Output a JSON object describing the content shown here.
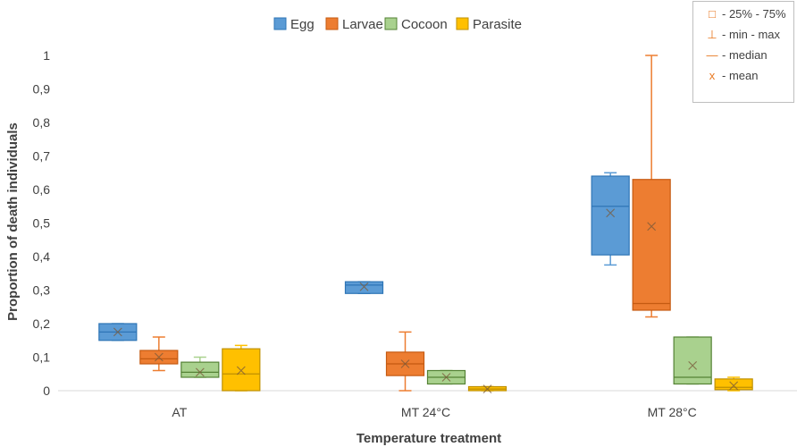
{
  "chart_data": {
    "type": "box",
    "title": "",
    "xlabel": "Temperature treatment",
    "ylabel": "Proportion of death individuals",
    "ylim": [
      0,
      1
    ],
    "yticks": [
      "0",
      "0,1",
      "0,2",
      "0,3",
      "0,4",
      "0,5",
      "0,6",
      "0,7",
      "0,8",
      "0,9",
      "1"
    ],
    "categories": [
      "AT",
      "MT 24°C",
      "MT 28°C"
    ],
    "legend_position": "top-center",
    "grid": false,
    "series": [
      {
        "name": "Egg",
        "color": "#5b9bd5",
        "stroke": "#2e75b6",
        "boxes": [
          {
            "min": 0.15,
            "q1": 0.15,
            "median": 0.175,
            "q3": 0.2,
            "max": 0.2,
            "mean": 0.175
          },
          {
            "min": 0.29,
            "q1": 0.29,
            "median": 0.315,
            "q3": 0.325,
            "max": 0.325,
            "mean": 0.31
          },
          {
            "min": 0.375,
            "q1": 0.405,
            "median": 0.55,
            "q3": 0.64,
            "max": 0.65,
            "mean": 0.53
          }
        ]
      },
      {
        "name": "Larvae",
        "color": "#ed7d31",
        "stroke": "#c55a11",
        "boxes": [
          {
            "min": 0.06,
            "q1": 0.08,
            "median": 0.095,
            "q3": 0.12,
            "max": 0.16,
            "mean": 0.1
          },
          {
            "min": 0.0,
            "q1": 0.045,
            "median": 0.08,
            "q3": 0.115,
            "max": 0.175,
            "mean": 0.08
          },
          {
            "min": 0.22,
            "q1": 0.24,
            "median": 0.26,
            "q3": 0.63,
            "max": 1.0,
            "mean": 0.49
          }
        ]
      },
      {
        "name": "Cocoon",
        "color": "#a9d18e",
        "stroke": "#548235",
        "boxes": [
          {
            "min": 0.04,
            "q1": 0.04,
            "median": 0.055,
            "q3": 0.085,
            "max": 0.1,
            "mean": 0.055
          },
          {
            "min": 0.02,
            "q1": 0.02,
            "median": 0.04,
            "q3": 0.06,
            "max": 0.06,
            "mean": 0.04
          },
          {
            "min": 0.02,
            "q1": 0.02,
            "median": 0.04,
            "q3": 0.16,
            "max": 0.16,
            "mean": 0.075
          }
        ]
      },
      {
        "name": "Parasite",
        "color": "#ffc000",
        "stroke": "#bf9000",
        "boxes": [
          {
            "min": 0.0,
            "q1": 0.0,
            "median": 0.05,
            "q3": 0.125,
            "max": 0.135,
            "mean": 0.06
          },
          {
            "min": 0.0,
            "q1": 0.0,
            "median": 0.005,
            "q3": 0.012,
            "max": 0.012,
            "mean": 0.005
          },
          {
            "min": 0.0,
            "q1": 0.003,
            "median": 0.01,
            "q3": 0.035,
            "max": 0.04,
            "mean": 0.015
          }
        ]
      }
    ]
  },
  "note": {
    "rows": [
      {
        "symbol": "□",
        "text": "- 25% - 75%"
      },
      {
        "symbol": "⊥",
        "text": "- min - max"
      },
      {
        "symbol": "—",
        "text": "- median"
      },
      {
        "symbol": "x",
        "text": "- mean"
      }
    ]
  }
}
